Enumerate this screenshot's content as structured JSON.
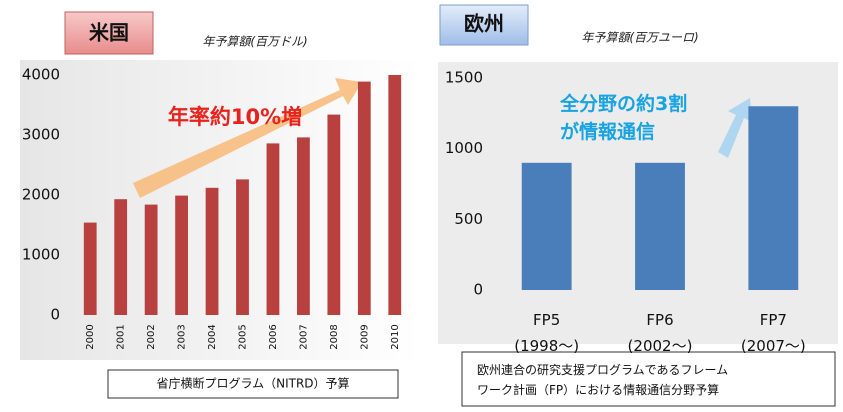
{
  "chart_data": [
    {
      "type": "bar",
      "badge": "米国",
      "unit_label": "年予算額(百万ドル)",
      "annotation": "年率約10%増",
      "caption": "省庁横断プログラム（NITRD）予算",
      "categories": [
        "2000",
        "2001",
        "2002",
        "2003",
        "2004",
        "2005",
        "2006",
        "2007",
        "2008",
        "2009",
        "2010"
      ],
      "values": [
        1540,
        1930,
        1840,
        1990,
        2120,
        2260,
        2860,
        2960,
        3340,
        3890,
        4000
      ],
      "color": "#b8403f",
      "ylim": [
        0,
        4000
      ],
      "yticks": [
        0,
        1000,
        2000,
        3000,
        4000
      ],
      "grid": false
    },
    {
      "type": "bar",
      "badge": "欧州",
      "unit_label": "年予算額(百万ユーロ)",
      "annotation": "全分野の約3割\nが情報通信",
      "caption": "欧州連合の研究支援プログラムであるフレーム\nワーク計画（FP）における情報通信分野予算",
      "categories": [
        "FP5\n(1998～)",
        "FP6\n(2002～)",
        "FP7\n(2007～)"
      ],
      "values": [
        900,
        900,
        1300
      ],
      "color": "#4a7ebb",
      "ylim": [
        0,
        1500
      ],
      "yticks": [
        0,
        500,
        1000,
        1500
      ],
      "grid": false
    }
  ]
}
